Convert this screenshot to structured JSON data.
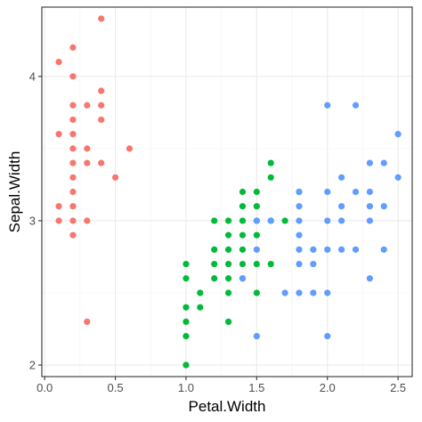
{
  "chart_data": {
    "type": "scatter",
    "title": "",
    "xlabel": "Petal.Width",
    "ylabel": "Sepal.Width",
    "xlim": [
      -0.02,
      2.6
    ],
    "ylim": [
      1.92,
      4.48
    ],
    "x_ticks": [
      0.0,
      0.5,
      1.0,
      1.5,
      2.0,
      2.5
    ],
    "x_tick_labels": [
      "0.0",
      "0.5",
      "1.0",
      "1.5",
      "2.0",
      "2.5"
    ],
    "y_ticks": [
      2,
      3,
      4
    ],
    "y_tick_labels": [
      "2",
      "3",
      "4"
    ],
    "grid": true,
    "legend": "none",
    "point_colors": [
      "#F8766D",
      "#00BA38",
      "#619CFF"
    ],
    "series": [
      {
        "color": "#F8766D",
        "points": [
          [
            0.1,
            3.0
          ],
          [
            0.1,
            3.1
          ],
          [
            0.1,
            3.6
          ],
          [
            0.1,
            4.1
          ],
          [
            0.2,
            2.9
          ],
          [
            0.2,
            3.0
          ],
          [
            0.2,
            3.1
          ],
          [
            0.2,
            3.2
          ],
          [
            0.2,
            3.3
          ],
          [
            0.2,
            3.4
          ],
          [
            0.2,
            3.5
          ],
          [
            0.2,
            3.6
          ],
          [
            0.2,
            3.7
          ],
          [
            0.2,
            3.8
          ],
          [
            0.2,
            4.0
          ],
          [
            0.2,
            4.2
          ],
          [
            0.3,
            2.3
          ],
          [
            0.3,
            3.0
          ],
          [
            0.3,
            3.4
          ],
          [
            0.3,
            3.5
          ],
          [
            0.3,
            3.8
          ],
          [
            0.4,
            3.4
          ],
          [
            0.4,
            3.7
          ],
          [
            0.4,
            3.8
          ],
          [
            0.4,
            3.9
          ],
          [
            0.4,
            4.4
          ],
          [
            0.5,
            3.3
          ],
          [
            0.6,
            3.5
          ]
        ]
      },
      {
        "color": "#00BA38",
        "points": [
          [
            1.0,
            2.0
          ],
          [
            1.0,
            2.2
          ],
          [
            1.0,
            2.3
          ],
          [
            1.0,
            2.4
          ],
          [
            1.0,
            2.6
          ],
          [
            1.0,
            2.7
          ],
          [
            1.1,
            2.4
          ],
          [
            1.1,
            2.5
          ],
          [
            1.2,
            2.6
          ],
          [
            1.2,
            2.7
          ],
          [
            1.2,
            2.8
          ],
          [
            1.2,
            3.0
          ],
          [
            1.3,
            2.3
          ],
          [
            1.3,
            2.5
          ],
          [
            1.3,
            2.6
          ],
          [
            1.3,
            2.7
          ],
          [
            1.3,
            2.8
          ],
          [
            1.3,
            2.9
          ],
          [
            1.3,
            3.0
          ],
          [
            1.4,
            2.6
          ],
          [
            1.4,
            2.7
          ],
          [
            1.4,
            2.8
          ],
          [
            1.4,
            2.9
          ],
          [
            1.4,
            3.0
          ],
          [
            1.4,
            3.1
          ],
          [
            1.4,
            3.2
          ],
          [
            1.5,
            2.5
          ],
          [
            1.5,
            2.7
          ],
          [
            1.5,
            2.9
          ],
          [
            1.5,
            3.0
          ],
          [
            1.5,
            3.1
          ],
          [
            1.5,
            3.2
          ],
          [
            1.6,
            2.7
          ],
          [
            1.6,
            3.0
          ],
          [
            1.6,
            3.3
          ],
          [
            1.6,
            3.4
          ],
          [
            1.7,
            3.0
          ],
          [
            1.8,
            3.2
          ]
        ]
      },
      {
        "color": "#619CFF",
        "points": [
          [
            1.4,
            2.6
          ],
          [
            1.5,
            2.2
          ],
          [
            1.5,
            2.8
          ],
          [
            1.5,
            3.0
          ],
          [
            1.6,
            3.0
          ],
          [
            1.7,
            2.5
          ],
          [
            1.8,
            2.5
          ],
          [
            1.8,
            2.7
          ],
          [
            1.8,
            2.8
          ],
          [
            1.8,
            2.9
          ],
          [
            1.8,
            3.0
          ],
          [
            1.8,
            3.1
          ],
          [
            1.8,
            3.2
          ],
          [
            1.9,
            2.5
          ],
          [
            1.9,
            2.7
          ],
          [
            1.9,
            2.8
          ],
          [
            2.0,
            2.2
          ],
          [
            2.0,
            2.5
          ],
          [
            2.0,
            2.8
          ],
          [
            2.0,
            3.0
          ],
          [
            2.0,
            3.2
          ],
          [
            2.0,
            3.8
          ],
          [
            2.1,
            2.8
          ],
          [
            2.1,
            3.0
          ],
          [
            2.1,
            3.1
          ],
          [
            2.1,
            3.3
          ],
          [
            2.2,
            2.8
          ],
          [
            2.2,
            3.2
          ],
          [
            2.2,
            3.8
          ],
          [
            2.3,
            2.6
          ],
          [
            2.3,
            3.0
          ],
          [
            2.3,
            3.1
          ],
          [
            2.3,
            3.2
          ],
          [
            2.3,
            3.4
          ],
          [
            2.4,
            2.8
          ],
          [
            2.4,
            3.1
          ],
          [
            2.4,
            3.4
          ],
          [
            2.5,
            3.3
          ],
          [
            2.5,
            3.6
          ]
        ]
      }
    ]
  }
}
